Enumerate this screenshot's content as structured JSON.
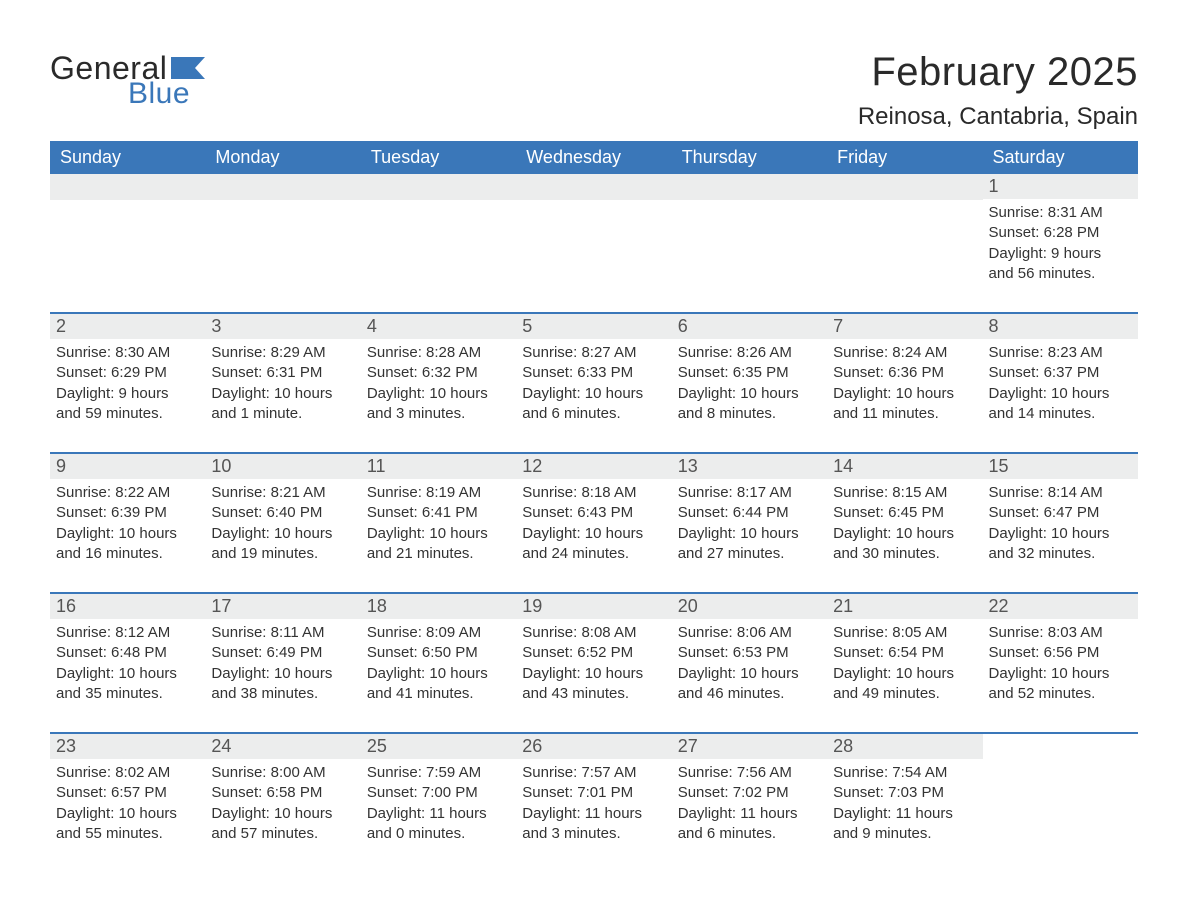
{
  "logo": {
    "text_general": "General",
    "text_blue": "Blue",
    "flag_color": "#3a77b9"
  },
  "title": {
    "month": "February 2025",
    "location": "Reinosa, Cantabria, Spain"
  },
  "colors": {
    "header_bg": "#3a77b9",
    "header_text": "#ffffff",
    "daynum_bg": "#eceded",
    "daynum_text": "#555555",
    "body_text": "#333333",
    "week_border": "#3a77b9",
    "background": "#ffffff"
  },
  "typography": {
    "month_title_fontsize": 40,
    "location_fontsize": 24,
    "dayheader_fontsize": 18,
    "daynum_fontsize": 18,
    "body_fontsize": 15
  },
  "layout": {
    "columns": 7,
    "rows": 5
  },
  "day_headers": [
    "Sunday",
    "Monday",
    "Tuesday",
    "Wednesday",
    "Thursday",
    "Friday",
    "Saturday"
  ],
  "weeks": [
    [
      {
        "empty": true
      },
      {
        "empty": true
      },
      {
        "empty": true
      },
      {
        "empty": true
      },
      {
        "empty": true
      },
      {
        "empty": true
      },
      {
        "day": "1",
        "sunrise": "Sunrise: 8:31 AM",
        "sunset": "Sunset: 6:28 PM",
        "daylight1": "Daylight: 9 hours",
        "daylight2": "and 56 minutes."
      }
    ],
    [
      {
        "day": "2",
        "sunrise": "Sunrise: 8:30 AM",
        "sunset": "Sunset: 6:29 PM",
        "daylight1": "Daylight: 9 hours",
        "daylight2": "and 59 minutes."
      },
      {
        "day": "3",
        "sunrise": "Sunrise: 8:29 AM",
        "sunset": "Sunset: 6:31 PM",
        "daylight1": "Daylight: 10 hours",
        "daylight2": "and 1 minute."
      },
      {
        "day": "4",
        "sunrise": "Sunrise: 8:28 AM",
        "sunset": "Sunset: 6:32 PM",
        "daylight1": "Daylight: 10 hours",
        "daylight2": "and 3 minutes."
      },
      {
        "day": "5",
        "sunrise": "Sunrise: 8:27 AM",
        "sunset": "Sunset: 6:33 PM",
        "daylight1": "Daylight: 10 hours",
        "daylight2": "and 6 minutes."
      },
      {
        "day": "6",
        "sunrise": "Sunrise: 8:26 AM",
        "sunset": "Sunset: 6:35 PM",
        "daylight1": "Daylight: 10 hours",
        "daylight2": "and 8 minutes."
      },
      {
        "day": "7",
        "sunrise": "Sunrise: 8:24 AM",
        "sunset": "Sunset: 6:36 PM",
        "daylight1": "Daylight: 10 hours",
        "daylight2": "and 11 minutes."
      },
      {
        "day": "8",
        "sunrise": "Sunrise: 8:23 AM",
        "sunset": "Sunset: 6:37 PM",
        "daylight1": "Daylight: 10 hours",
        "daylight2": "and 14 minutes."
      }
    ],
    [
      {
        "day": "9",
        "sunrise": "Sunrise: 8:22 AM",
        "sunset": "Sunset: 6:39 PM",
        "daylight1": "Daylight: 10 hours",
        "daylight2": "and 16 minutes."
      },
      {
        "day": "10",
        "sunrise": "Sunrise: 8:21 AM",
        "sunset": "Sunset: 6:40 PM",
        "daylight1": "Daylight: 10 hours",
        "daylight2": "and 19 minutes."
      },
      {
        "day": "11",
        "sunrise": "Sunrise: 8:19 AM",
        "sunset": "Sunset: 6:41 PM",
        "daylight1": "Daylight: 10 hours",
        "daylight2": "and 21 minutes."
      },
      {
        "day": "12",
        "sunrise": "Sunrise: 8:18 AM",
        "sunset": "Sunset: 6:43 PM",
        "daylight1": "Daylight: 10 hours",
        "daylight2": "and 24 minutes."
      },
      {
        "day": "13",
        "sunrise": "Sunrise: 8:17 AM",
        "sunset": "Sunset: 6:44 PM",
        "daylight1": "Daylight: 10 hours",
        "daylight2": "and 27 minutes."
      },
      {
        "day": "14",
        "sunrise": "Sunrise: 8:15 AM",
        "sunset": "Sunset: 6:45 PM",
        "daylight1": "Daylight: 10 hours",
        "daylight2": "and 30 minutes."
      },
      {
        "day": "15",
        "sunrise": "Sunrise: 8:14 AM",
        "sunset": "Sunset: 6:47 PM",
        "daylight1": "Daylight: 10 hours",
        "daylight2": "and 32 minutes."
      }
    ],
    [
      {
        "day": "16",
        "sunrise": "Sunrise: 8:12 AM",
        "sunset": "Sunset: 6:48 PM",
        "daylight1": "Daylight: 10 hours",
        "daylight2": "and 35 minutes."
      },
      {
        "day": "17",
        "sunrise": "Sunrise: 8:11 AM",
        "sunset": "Sunset: 6:49 PM",
        "daylight1": "Daylight: 10 hours",
        "daylight2": "and 38 minutes."
      },
      {
        "day": "18",
        "sunrise": "Sunrise: 8:09 AM",
        "sunset": "Sunset: 6:50 PM",
        "daylight1": "Daylight: 10 hours",
        "daylight2": "and 41 minutes."
      },
      {
        "day": "19",
        "sunrise": "Sunrise: 8:08 AM",
        "sunset": "Sunset: 6:52 PM",
        "daylight1": "Daylight: 10 hours",
        "daylight2": "and 43 minutes."
      },
      {
        "day": "20",
        "sunrise": "Sunrise: 8:06 AM",
        "sunset": "Sunset: 6:53 PM",
        "daylight1": "Daylight: 10 hours",
        "daylight2": "and 46 minutes."
      },
      {
        "day": "21",
        "sunrise": "Sunrise: 8:05 AM",
        "sunset": "Sunset: 6:54 PM",
        "daylight1": "Daylight: 10 hours",
        "daylight2": "and 49 minutes."
      },
      {
        "day": "22",
        "sunrise": "Sunrise: 8:03 AM",
        "sunset": "Sunset: 6:56 PM",
        "daylight1": "Daylight: 10 hours",
        "daylight2": "and 52 minutes."
      }
    ],
    [
      {
        "day": "23",
        "sunrise": "Sunrise: 8:02 AM",
        "sunset": "Sunset: 6:57 PM",
        "daylight1": "Daylight: 10 hours",
        "daylight2": "and 55 minutes."
      },
      {
        "day": "24",
        "sunrise": "Sunrise: 8:00 AM",
        "sunset": "Sunset: 6:58 PM",
        "daylight1": "Daylight: 10 hours",
        "daylight2": "and 57 minutes."
      },
      {
        "day": "25",
        "sunrise": "Sunrise: 7:59 AM",
        "sunset": "Sunset: 7:00 PM",
        "daylight1": "Daylight: 11 hours",
        "daylight2": "and 0 minutes."
      },
      {
        "day": "26",
        "sunrise": "Sunrise: 7:57 AM",
        "sunset": "Sunset: 7:01 PM",
        "daylight1": "Daylight: 11 hours",
        "daylight2": "and 3 minutes."
      },
      {
        "day": "27",
        "sunrise": "Sunrise: 7:56 AM",
        "sunset": "Sunset: 7:02 PM",
        "daylight1": "Daylight: 11 hours",
        "daylight2": "and 6 minutes."
      },
      {
        "day": "28",
        "sunrise": "Sunrise: 7:54 AM",
        "sunset": "Sunset: 7:03 PM",
        "daylight1": "Daylight: 11 hours",
        "daylight2": "and 9 minutes."
      },
      {
        "empty": true,
        "no_bar": true
      }
    ]
  ]
}
